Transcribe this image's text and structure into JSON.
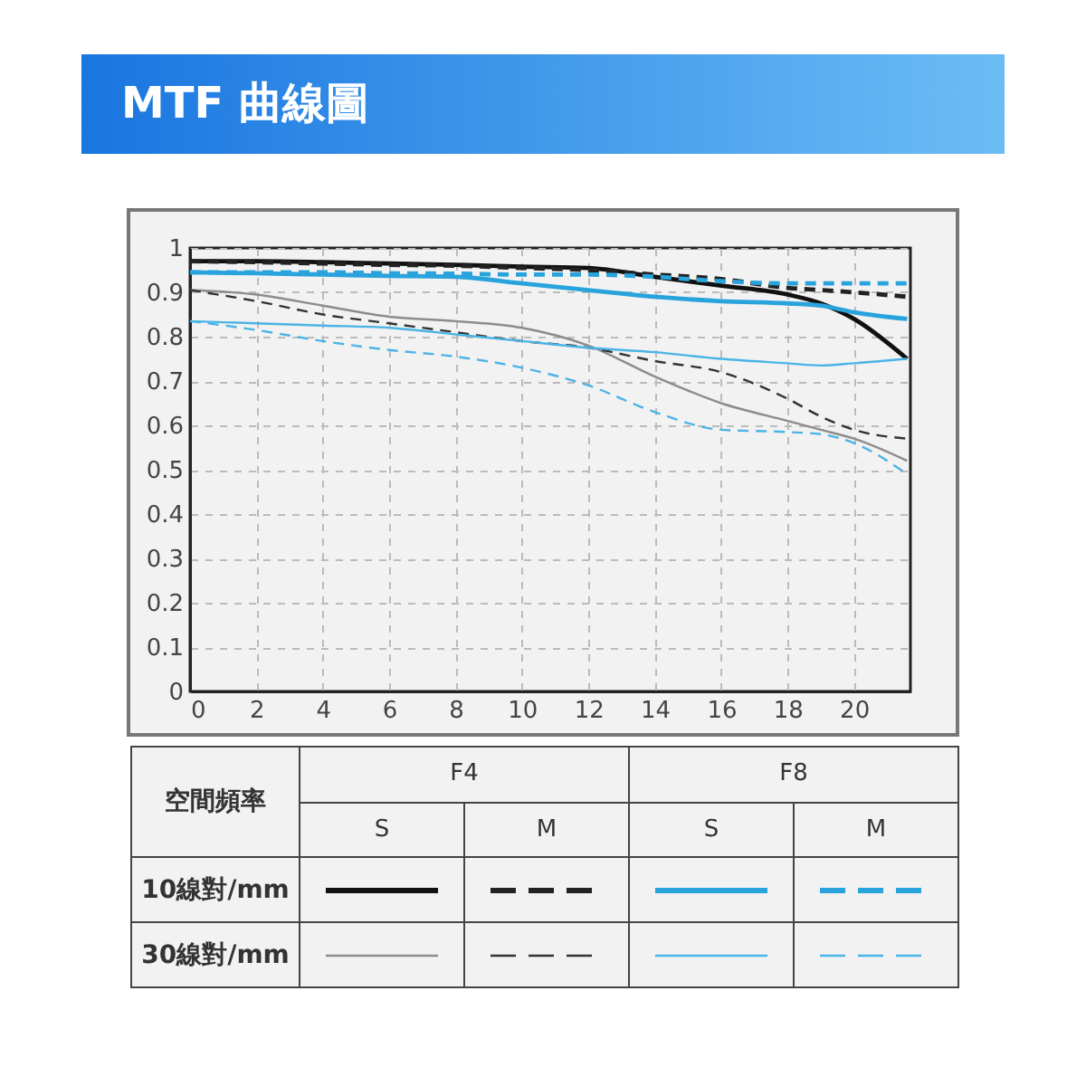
{
  "chart_data": {
    "type": "line",
    "title": "MTF 曲線圖",
    "x": [
      0,
      2,
      4,
      6,
      8,
      10,
      12,
      14,
      16,
      18,
      19,
      20,
      21.6
    ],
    "series": [
      {
        "color": "#111111",
        "line_style": "solid",
        "values": [
          0.97,
          0.97,
          0.968,
          0.965,
          0.962,
          0.958,
          0.955,
          0.935,
          0.915,
          0.895,
          0.875,
          0.84,
          0.75
        ]
      },
      {
        "color": "#222222",
        "line_style": "dashed",
        "values": [
          0.97,
          0.968,
          0.965,
          0.962,
          0.96,
          0.955,
          0.95,
          0.94,
          0.93,
          0.91,
          0.905,
          0.9,
          0.89
        ]
      },
      {
        "color": "#29a3dc",
        "line_style": "solid",
        "values": [
          0.945,
          0.943,
          0.94,
          0.937,
          0.935,
          0.92,
          0.905,
          0.89,
          0.88,
          0.875,
          0.87,
          0.855,
          0.84
        ]
      },
      {
        "color": "#29a3dc",
        "line_style": "dashed",
        "values": [
          0.945,
          0.945,
          0.945,
          0.943,
          0.942,
          0.94,
          0.94,
          0.935,
          0.925,
          0.92,
          0.92,
          0.92,
          0.92
        ]
      },
      {
        "color": "#8c8c8c",
        "line_style": "solid",
        "values": [
          0.905,
          0.895,
          0.87,
          0.845,
          0.835,
          0.82,
          0.78,
          0.71,
          0.65,
          0.61,
          0.59,
          0.57,
          0.52
        ]
      },
      {
        "color": "#333333",
        "line_style": "dashed",
        "values": [
          0.905,
          0.88,
          0.85,
          0.83,
          0.81,
          0.79,
          0.775,
          0.745,
          0.72,
          0.66,
          0.62,
          0.59,
          0.57
        ]
      },
      {
        "color": "#4ab4e6",
        "line_style": "solid",
        "values": [
          0.835,
          0.83,
          0.825,
          0.82,
          0.805,
          0.79,
          0.775,
          0.765,
          0.75,
          0.74,
          0.735,
          0.74,
          0.75
        ]
      },
      {
        "color": "#4ab4e6",
        "line_style": "dashed",
        "values": [
          0.835,
          0.815,
          0.79,
          0.77,
          0.755,
          0.73,
          0.69,
          0.63,
          0.59,
          0.585,
          0.58,
          0.56,
          0.49
        ]
      }
    ],
    "xlim": [
      0,
      21.7
    ],
    "ylim": [
      0,
      1
    ],
    "xticks": [
      0,
      2,
      4,
      6,
      8,
      10,
      12,
      14,
      16,
      18,
      20
    ],
    "yticks": [
      0,
      0.1,
      0.2,
      0.3,
      0.4,
      0.5,
      0.6,
      0.7,
      0.8,
      0.9,
      1
    ],
    "grid": true,
    "annotations": [
      "空間頻率",
      "F4",
      "F8",
      "S",
      "M",
      "S",
      "M",
      "10線對/mm",
      "30線對/mm"
    ]
  }
}
